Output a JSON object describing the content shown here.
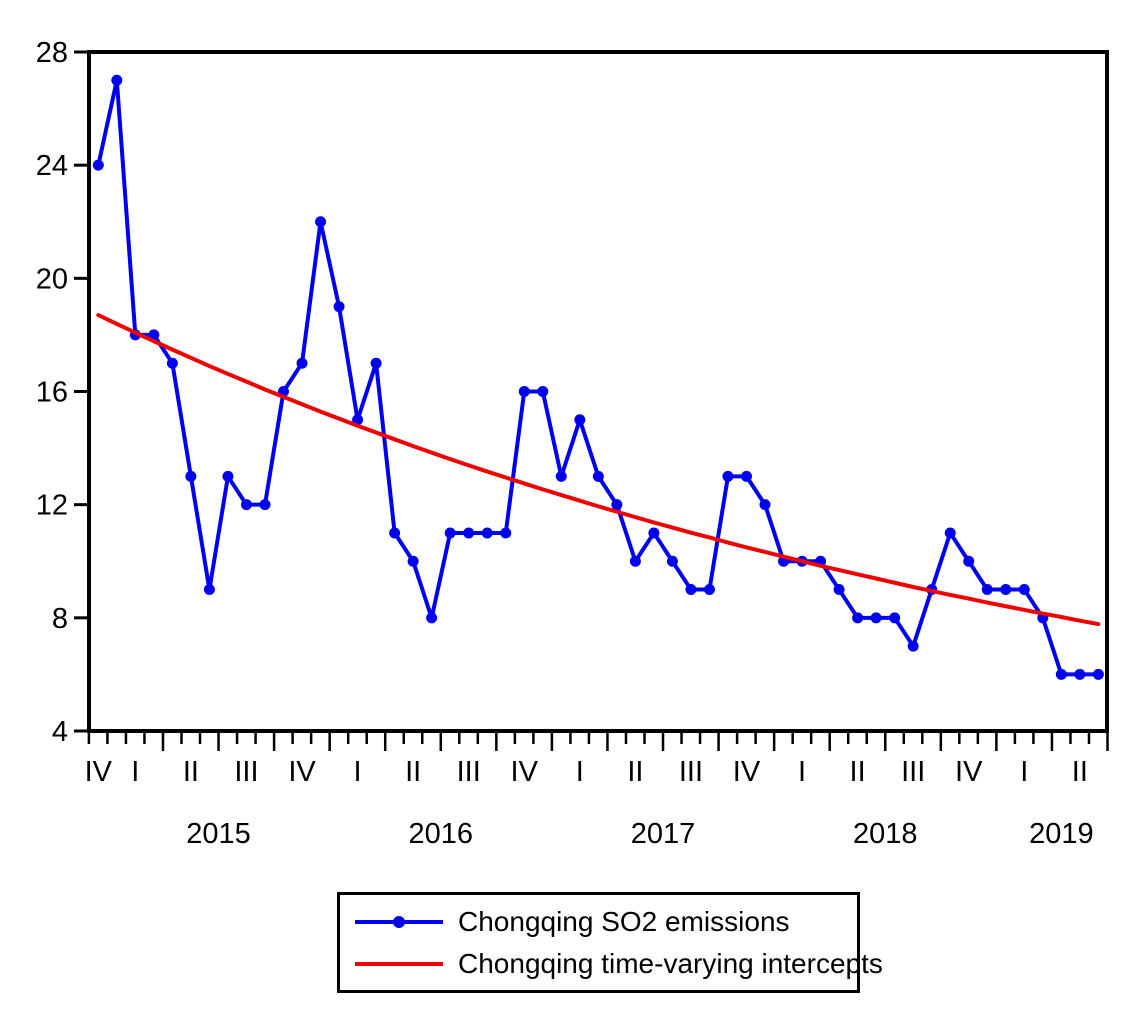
{
  "page": {
    "background_color": "#ffffff",
    "text_color": "#000000"
  },
  "chart_data": {
    "type": "line",
    "title": "",
    "frequency": "monthly",
    "x_start_month": "2014-11",
    "x_end_month": "2019-05",
    "n_points": 55,
    "ylim": [
      4,
      28
    ],
    "yticks": [
      28,
      24,
      20,
      16,
      12,
      8,
      4
    ],
    "x_quarter_labels": [
      "IV",
      "I",
      "II",
      "III",
      "IV",
      "I",
      "II",
      "III",
      "IV",
      "I",
      "II",
      "III",
      "IV",
      "I",
      "II",
      "III",
      "IV",
      "I",
      "II"
    ],
    "x_year_labels": [
      "2015",
      "2016",
      "2017",
      "2018",
      "2019"
    ],
    "grid": false,
    "legend_position": "bottom-center-outside",
    "legend_border": true,
    "series": [
      {
        "name": "Chongqing SO2 emissions",
        "color": "#0000f0",
        "marker": "circle",
        "values": [
          24,
          27,
          18,
          18,
          17,
          13,
          9,
          13,
          12,
          12,
          16,
          17,
          22,
          19,
          15,
          17,
          11,
          10,
          8,
          11,
          11,
          11,
          11,
          16,
          16,
          13,
          15,
          13,
          12,
          10,
          11,
          10,
          9,
          9,
          13,
          13,
          12,
          10,
          10,
          10,
          9,
          8,
          8,
          8,
          7,
          9,
          11,
          10,
          9,
          9,
          9,
          8,
          6,
          6,
          6
        ]
      },
      {
        "name": "Chongqing time-varying intercepts",
        "color": "#f00000",
        "marker": "none",
        "values": [
          18.7,
          18.39,
          18.08,
          17.78,
          17.48,
          17.19,
          16.9,
          16.62,
          16.35,
          16.07,
          15.81,
          15.55,
          15.29,
          15.04,
          14.79,
          14.55,
          14.31,
          14.07,
          13.84,
          13.61,
          13.39,
          13.17,
          12.96,
          12.75,
          12.54,
          12.34,
          12.14,
          11.94,
          11.75,
          11.56,
          11.37,
          11.19,
          11.01,
          10.84,
          10.66,
          10.49,
          10.33,
          10.16,
          10.0,
          9.84,
          9.69,
          9.54,
          9.39,
          9.24,
          9.09,
          8.95,
          8.81,
          8.68,
          8.54,
          8.41,
          8.28,
          8.15,
          8.03,
          7.9,
          7.78
        ]
      }
    ]
  }
}
